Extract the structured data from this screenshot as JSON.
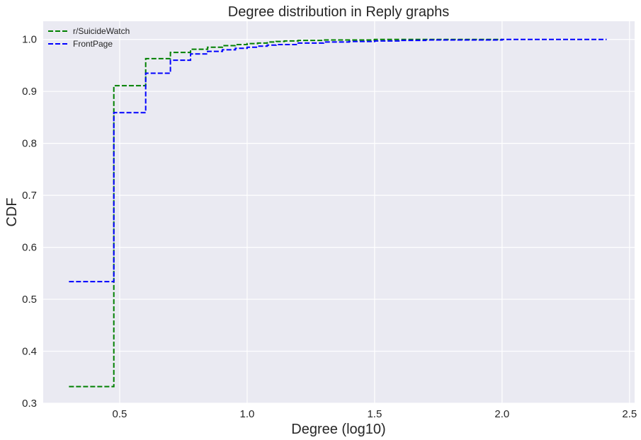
{
  "chart_data": {
    "type": "line",
    "title": "Degree distribution in Reply graphs",
    "xlabel": "Degree (log10)",
    "ylabel": "CDF",
    "xlim": [
      0.2,
      2.52
    ],
    "ylim": [
      0.3,
      1.035
    ],
    "x_ticks": [
      0.5,
      1.0,
      1.5,
      2.0,
      2.5
    ],
    "y_ticks": [
      0.3,
      0.4,
      0.5,
      0.6,
      0.7,
      0.8,
      0.9,
      1.0
    ],
    "x_tick_labels": [
      "0.5",
      "1.0",
      "1.5",
      "2.0",
      "2.5"
    ],
    "y_tick_labels": [
      "0.3",
      "0.4",
      "0.5",
      "0.6",
      "0.7",
      "0.8",
      "0.9",
      "1.0"
    ],
    "grid": true,
    "background": "#EAEAF2",
    "legend_position": "top-left",
    "step": "post",
    "series": [
      {
        "name": "r/SuicideWatch",
        "color": "#008000",
        "x": [
          0.301,
          0.477,
          0.602,
          0.699,
          0.778,
          0.845,
          0.903,
          0.954,
          1.0,
          1.041,
          1.079,
          1.114,
          1.146,
          1.2,
          1.3,
          1.4,
          1.5,
          1.7,
          2.0
        ],
        "y": [
          0.332,
          0.911,
          0.963,
          0.975,
          0.981,
          0.985,
          0.988,
          0.99,
          0.992,
          0.993,
          0.995,
          0.996,
          0.997,
          0.998,
          0.999,
          0.999,
          1.0,
          1.0,
          1.0
        ]
      },
      {
        "name": "FrontPage",
        "color": "#0000FF",
        "x": [
          0.301,
          0.477,
          0.602,
          0.699,
          0.778,
          0.845,
          0.903,
          0.954,
          1.0,
          1.041,
          1.079,
          1.114,
          1.2,
          1.3,
          1.4,
          1.5,
          1.6,
          1.7,
          1.8,
          2.0,
          2.41
        ],
        "y": [
          0.534,
          0.859,
          0.935,
          0.96,
          0.972,
          0.977,
          0.98,
          0.983,
          0.985,
          0.987,
          0.989,
          0.99,
          0.993,
          0.995,
          0.996,
          0.997,
          0.998,
          0.999,
          0.999,
          1.0,
          1.0
        ]
      }
    ]
  }
}
